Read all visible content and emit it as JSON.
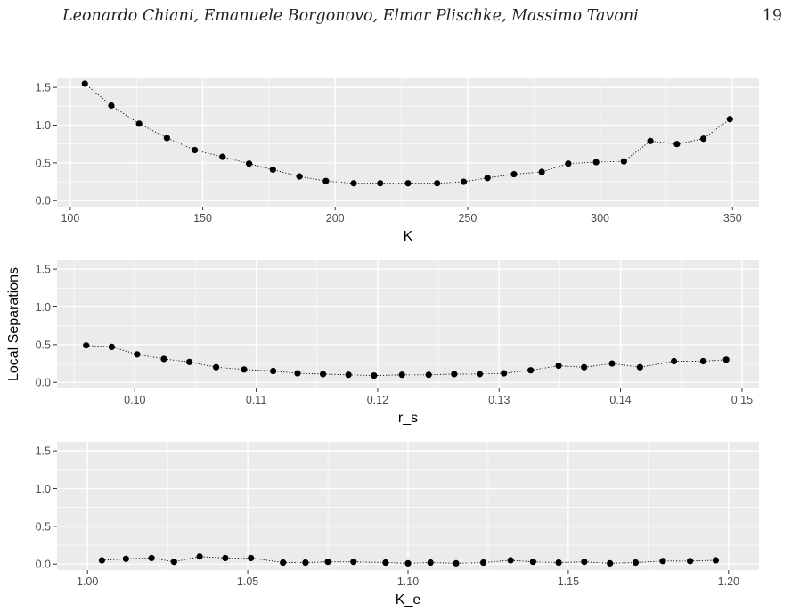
{
  "header": {
    "authors": "Leonardo Chiani, Emanuele Borgonovo, Elmar Plischke, Massimo Tavoni",
    "page_number": "19"
  },
  "figure": {
    "shared_ylabel": "Local Separations"
  },
  "colors": {
    "panel_background": "#ebebeb",
    "grid": "#ffffff",
    "points": "#000000",
    "tick_text": "#4d4d4d",
    "axis_title": "#000000"
  },
  "chart_data": [
    {
      "type": "line",
      "xlabel": "K",
      "ylabel": "",
      "xlim": [
        95,
        360
      ],
      "ylim": [
        -0.08,
        1.62
      ],
      "xticks": [
        100,
        150,
        200,
        250,
        300,
        350
      ],
      "xtick_labels": [
        "100",
        "150",
        "200",
        "250",
        "300",
        "350"
      ],
      "yticks": [
        0.0,
        0.5,
        1.0,
        1.5
      ],
      "ytick_labels": [
        "0.0",
        "0.5",
        "1.0",
        "1.5"
      ],
      "grid": true,
      "line_style": "dotted",
      "x": [
        105.5,
        115.5,
        126,
        136.5,
        147,
        157.5,
        167.5,
        176.5,
        186.5,
        196.5,
        207,
        217,
        227.5,
        238.5,
        248.5,
        257.5,
        267.5,
        278,
        288,
        298.5,
        309,
        319,
        329,
        339,
        349
      ],
      "y": [
        1.55,
        1.26,
        1.02,
        0.83,
        0.67,
        0.58,
        0.49,
        0.41,
        0.32,
        0.26,
        0.23,
        0.23,
        0.23,
        0.23,
        0.25,
        0.3,
        0.35,
        0.38,
        0.49,
        0.51,
        0.52,
        0.79,
        0.75,
        0.82,
        1.08
      ]
    },
    {
      "type": "line",
      "xlabel": "r_s",
      "ylabel": "",
      "xlim": [
        0.0936,
        0.1514
      ],
      "ylim": [
        -0.08,
        1.62
      ],
      "xticks": [
        0.1,
        0.11,
        0.12,
        0.13,
        0.14,
        0.15
      ],
      "xtick_labels": [
        "0.10",
        "0.11",
        "0.12",
        "0.13",
        "0.14",
        "0.15"
      ],
      "yticks": [
        0.0,
        0.5,
        1.0,
        1.5
      ],
      "ytick_labels": [
        "0.0",
        "0.5",
        "1.0",
        "1.5"
      ],
      "grid": true,
      "line_style": "dotted",
      "x": [
        0.096,
        0.0981,
        0.1002,
        0.1024,
        0.1045,
        0.1067,
        0.109,
        0.1114,
        0.1134,
        0.1155,
        0.1176,
        0.1197,
        0.122,
        0.1242,
        0.1263,
        0.1284,
        0.1304,
        0.1326,
        0.1349,
        0.137,
        0.1393,
        0.1416,
        0.1444,
        0.1468,
        0.1487
      ],
      "y": [
        0.49,
        0.47,
        0.37,
        0.31,
        0.27,
        0.2,
        0.17,
        0.15,
        0.12,
        0.11,
        0.1,
        0.09,
        0.1,
        0.1,
        0.11,
        0.11,
        0.12,
        0.16,
        0.22,
        0.2,
        0.25,
        0.2,
        0.28,
        0.28,
        0.3
      ]
    },
    {
      "type": "line",
      "xlabel": "K_e",
      "ylabel": "",
      "xlim": [
        0.9905,
        1.2095
      ],
      "ylim": [
        -0.08,
        1.62
      ],
      "xticks": [
        1.0,
        1.05,
        1.1,
        1.15,
        1.2
      ],
      "xtick_labels": [
        "1.00",
        "1.05",
        "1.10",
        "1.15",
        "1.20"
      ],
      "yticks": [
        0.0,
        0.5,
        1.0,
        1.5
      ],
      "ytick_labels": [
        "0.0",
        "0.5",
        "1.0",
        "1.5"
      ],
      "grid": true,
      "line_style": "dotted",
      "x": [
        1.0045,
        1.012,
        1.02,
        1.027,
        1.035,
        1.043,
        1.051,
        1.061,
        1.068,
        1.075,
        1.083,
        1.093,
        1.1,
        1.107,
        1.115,
        1.1235,
        1.132,
        1.139,
        1.147,
        1.155,
        1.163,
        1.171,
        1.1795,
        1.188,
        1.196
      ],
      "y": [
        0.05,
        0.07,
        0.08,
        0.03,
        0.1,
        0.08,
        0.08,
        0.02,
        0.02,
        0.03,
        0.03,
        0.02,
        0.01,
        0.02,
        0.01,
        0.02,
        0.05,
        0.03,
        0.02,
        0.03,
        0.01,
        0.02,
        0.04,
        0.04,
        0.05
      ]
    }
  ]
}
